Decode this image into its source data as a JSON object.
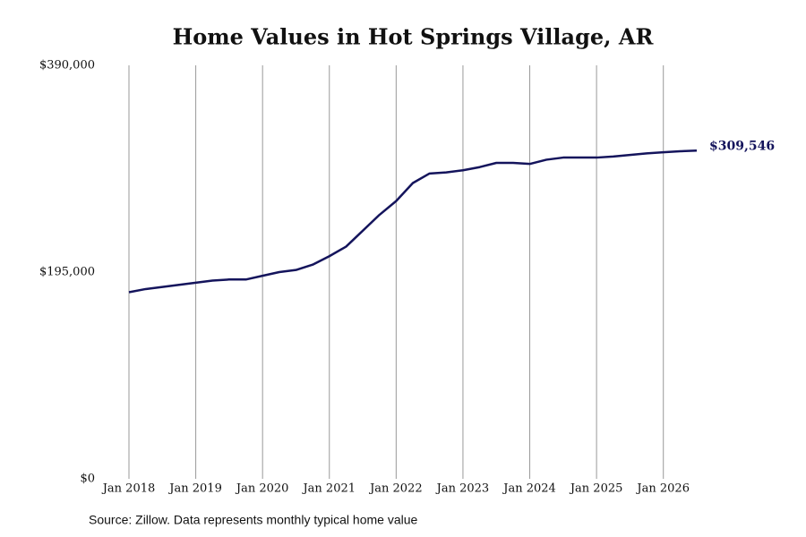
{
  "chart_data": {
    "type": "line",
    "title": "Home Values in Hot Springs Village, AR",
    "source": "Source: Zillow. Data represents monthly typical home value",
    "x": [
      2018,
      2018.25,
      2018.5,
      2018.75,
      2019,
      2019.25,
      2019.5,
      2019.75,
      2020,
      2020.25,
      2020.5,
      2020.75,
      2021,
      2021.25,
      2021.5,
      2021.75,
      2022,
      2022.25,
      2022.5,
      2022.75,
      2023,
      2023.25,
      2023.5,
      2023.75,
      2024,
      2024.25,
      2024.5,
      2024.75,
      2025,
      2025.25,
      2025.5,
      2025.75,
      2026,
      2026.25,
      2026.5
    ],
    "values": [
      176000,
      179000,
      181000,
      183000,
      185000,
      187000,
      188000,
      188000,
      191500,
      195000,
      197000,
      202000,
      210000,
      219000,
      234000,
      249000,
      262000,
      279000,
      288000,
      289000,
      291000,
      294000,
      298000,
      298000,
      297000,
      301000,
      303000,
      303000,
      303000,
      304000,
      305500,
      307000,
      308000,
      309000,
      309546
    ],
    "value_labels": [
      null,
      null,
      null,
      null,
      null,
      null,
      null,
      null,
      null,
      null,
      null,
      null,
      null,
      null,
      null,
      null,
      null,
      null,
      null,
      null,
      null,
      null,
      null,
      null,
      null,
      null,
      null,
      null,
      null,
      null,
      null,
      null,
      null,
      null,
      "$309,546"
    ],
    "color": "#14145c",
    "xlim": [
      2018,
      2026.5
    ],
    "xticks": [
      {
        "value": 2018,
        "label": "Jan 2018"
      },
      {
        "value": 2019,
        "label": "Jan 2019"
      },
      {
        "value": 2020,
        "label": "Jan 2020"
      },
      {
        "value": 2021,
        "label": "Jan 2021"
      },
      {
        "value": 2022,
        "label": "Jan 2022"
      },
      {
        "value": 2023,
        "label": "Jan 2023"
      },
      {
        "value": 2024,
        "label": "Jan 2024"
      },
      {
        "value": 2025,
        "label": "Jan 2025"
      },
      {
        "value": 2026,
        "label": "Jan 2026"
      }
    ],
    "ylim": [
      0,
      390000
    ],
    "yticks": [
      {
        "value": 0,
        "label": "$0"
      },
      {
        "value": 195000,
        "label": "$195,000"
      },
      {
        "value": 390000,
        "label": "$390,000"
      }
    ],
    "grid": true
  }
}
